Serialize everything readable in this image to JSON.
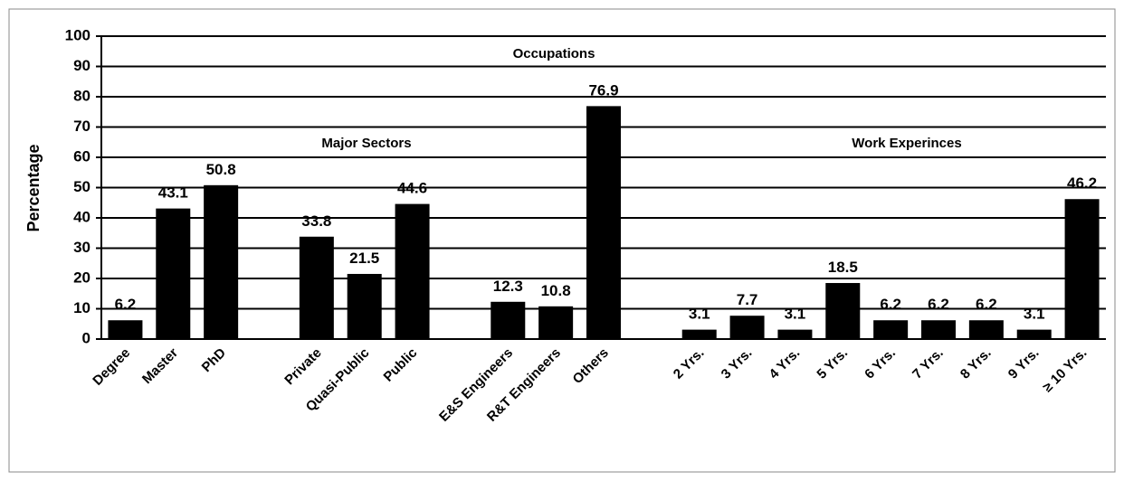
{
  "chart_data": {
    "type": "bar",
    "y_label": "Percentage",
    "annotations": [
      "Occupations",
      "Major Sectors",
      "Work Experinces"
    ],
    "categories": [
      "Degree",
      "Master",
      "PhD",
      null,
      "Private",
      "Quasi-Public",
      "Public",
      null,
      "E&S Engineers",
      "R&T Engineers",
      "Others",
      null,
      "2 Yrs.",
      "3 Yrs.",
      "4 Yrs.",
      "5 Yrs.",
      "6 Yrs.",
      "7 Yrs.",
      "8 Yrs.",
      "9 Yrs.",
      "≥ 10 Yrs."
    ],
    "values": [
      6.2,
      43.1,
      50.8,
      null,
      33.8,
      21.5,
      44.6,
      null,
      12.3,
      10.8,
      76.9,
      null,
      3.1,
      7.7,
      3.1,
      18.5,
      6.2,
      6.2,
      6.2,
      3.1,
      46.2
    ],
    "color": "#000000",
    "ylim": [
      0,
      100
    ],
    "yticks": [
      0,
      10,
      20,
      30,
      40,
      50,
      60,
      70,
      80,
      90,
      100
    ],
    "grid": true
  }
}
